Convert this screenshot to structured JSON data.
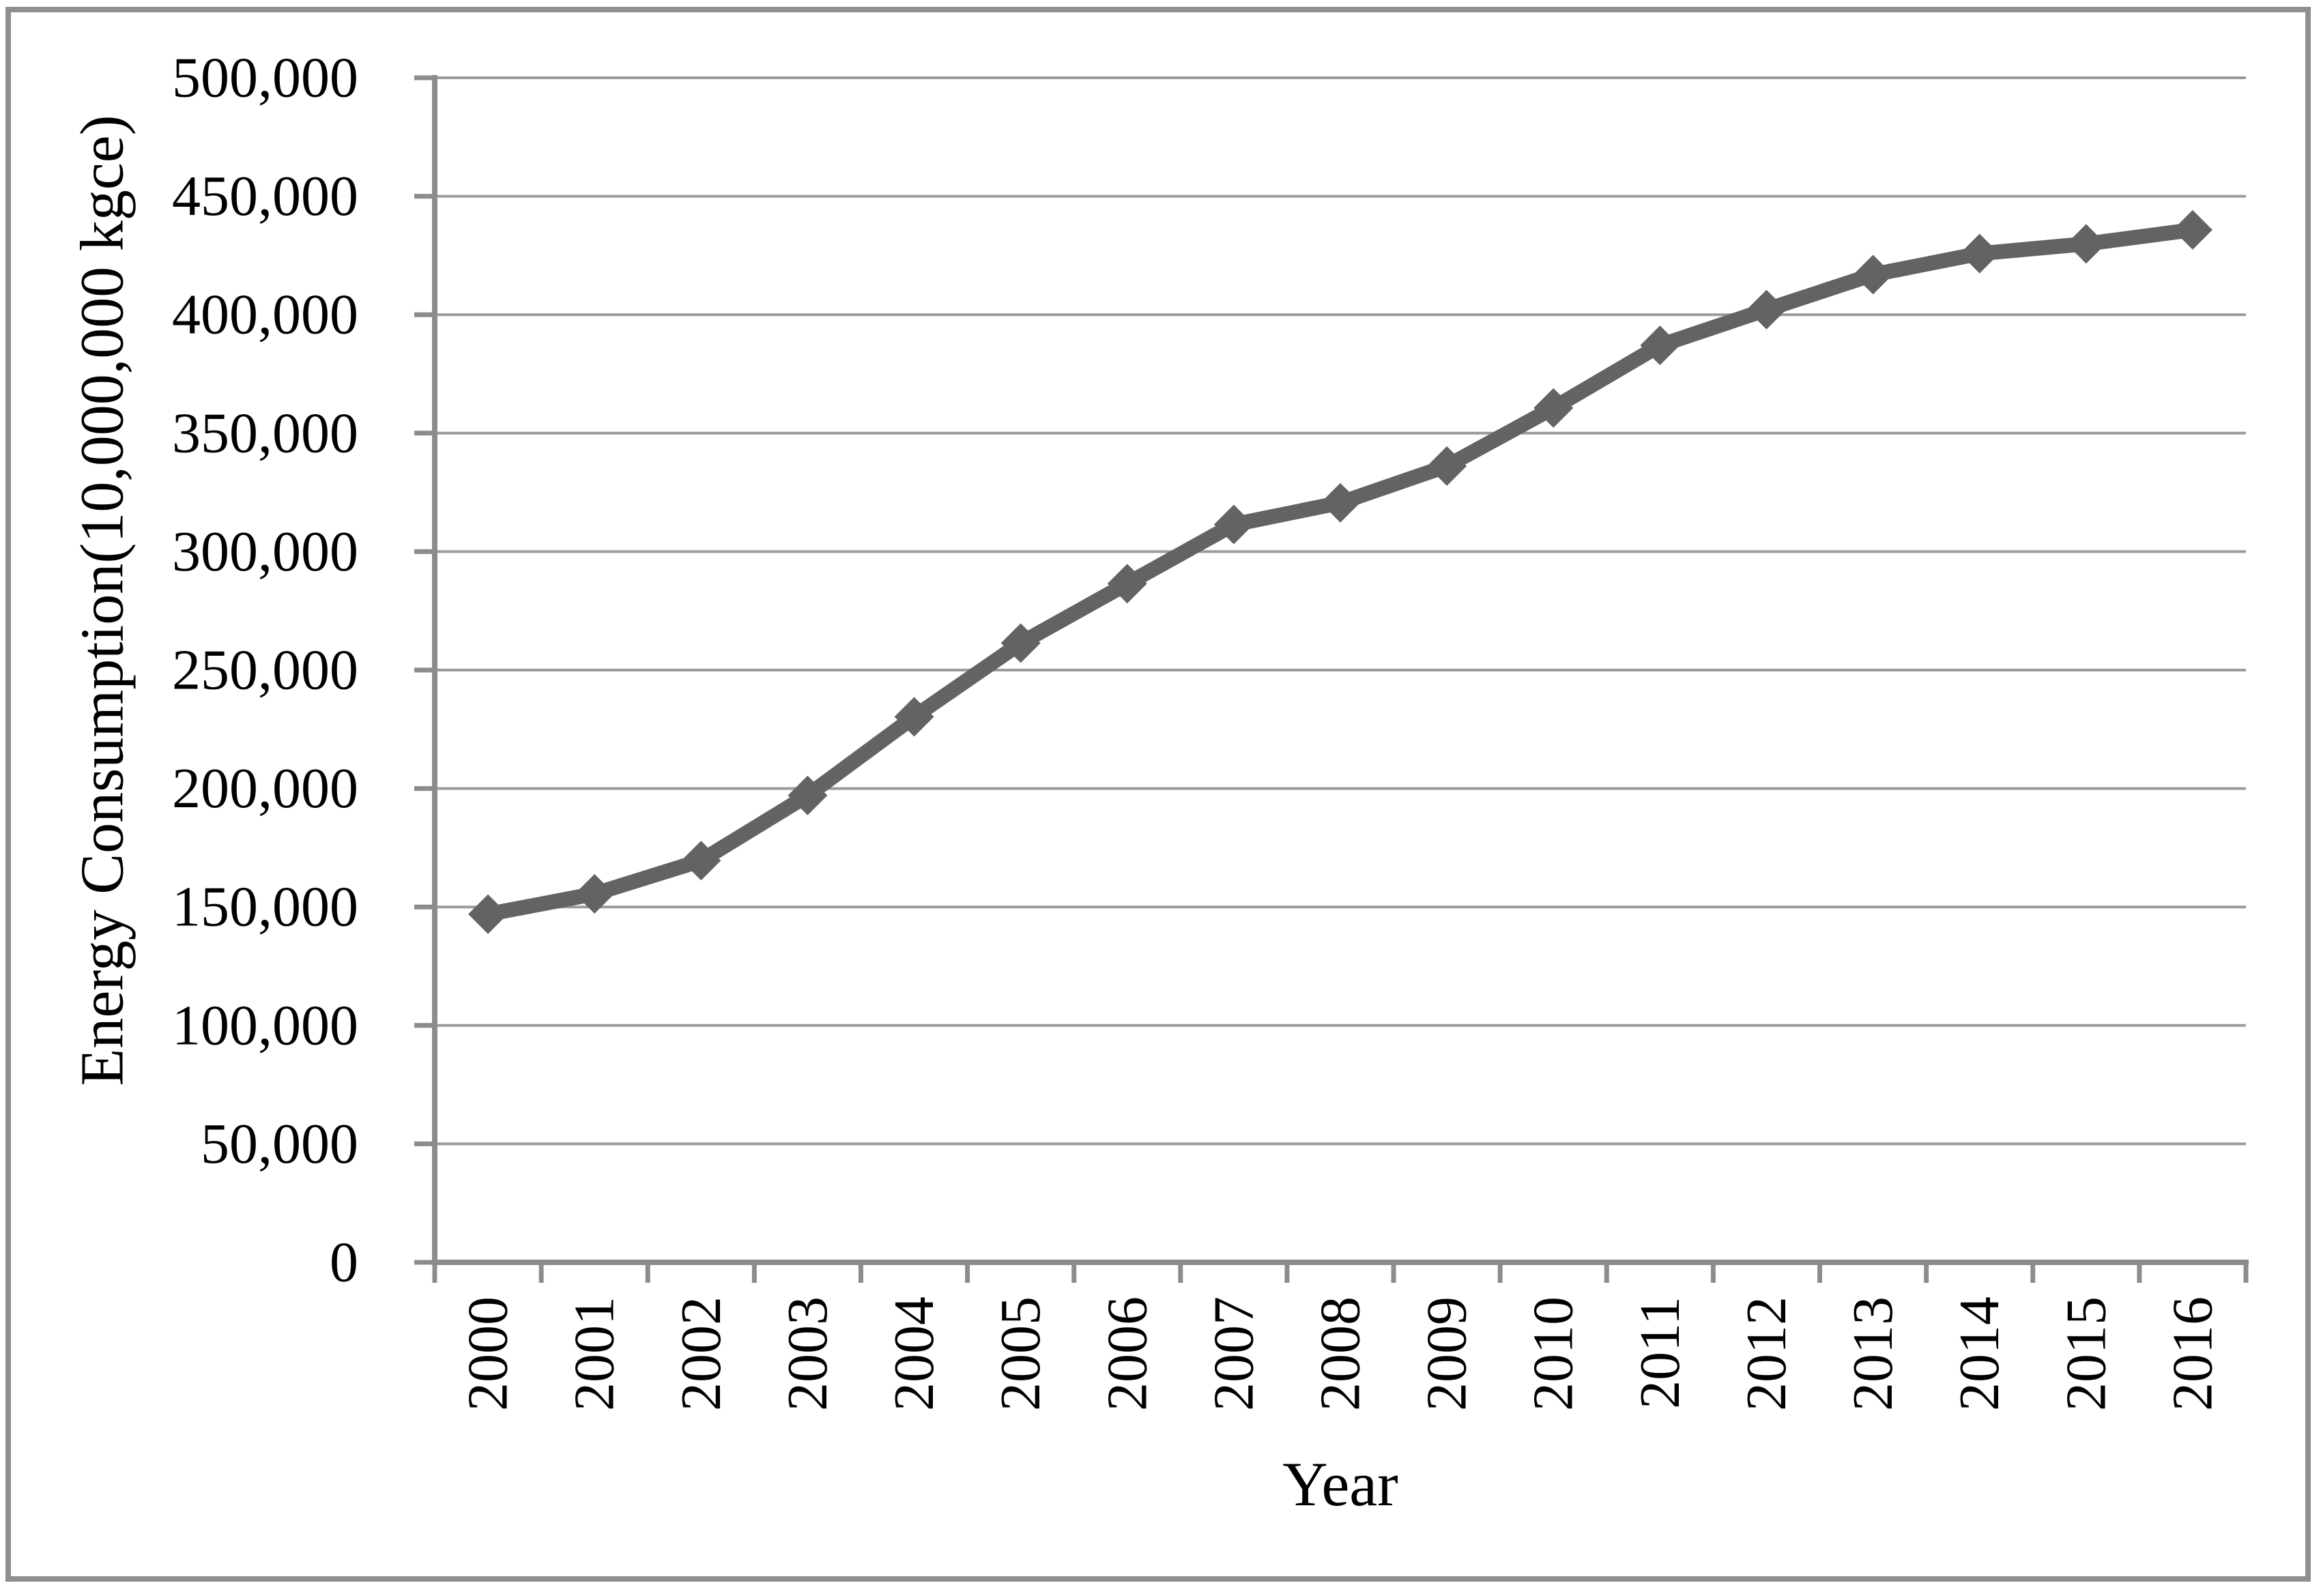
{
  "chart_data": {
    "type": "line",
    "title": "",
    "xlabel": "Year",
    "ylabel": "Energy Consumption(10,000,000 kgce)",
    "x": [
      2000,
      2001,
      2002,
      2003,
      2004,
      2005,
      2006,
      2007,
      2008,
      2009,
      2010,
      2011,
      2012,
      2013,
      2014,
      2015,
      2016
    ],
    "series": [
      {
        "name": "Energy Consumption",
        "values": [
          146964,
          155547,
          169577,
          197083,
          230281,
          261369,
          286467,
          311442,
          320611,
          336126,
          360648,
          387043,
          402138,
          416913,
          425806,
          429905,
          435819
        ]
      }
    ],
    "ylim": [
      0,
      500000
    ],
    "ytick_step": 50000,
    "ytick_labels": [
      "0",
      "50,000",
      "100,000",
      "150,000",
      "200,000",
      "250,000",
      "300,000",
      "350,000",
      "400,000",
      "450,000",
      "500,000"
    ],
    "grid": "horizontal",
    "legend": "none",
    "marker": "diamond",
    "colors": {
      "line": "#636363",
      "marker": "#636363",
      "gridline": "#9b9b9b",
      "axis": "#8c8c8c",
      "tick": "#8c8c8c",
      "border": "#8f8f8f",
      "text": "#000000",
      "background": "#ffffff"
    }
  }
}
